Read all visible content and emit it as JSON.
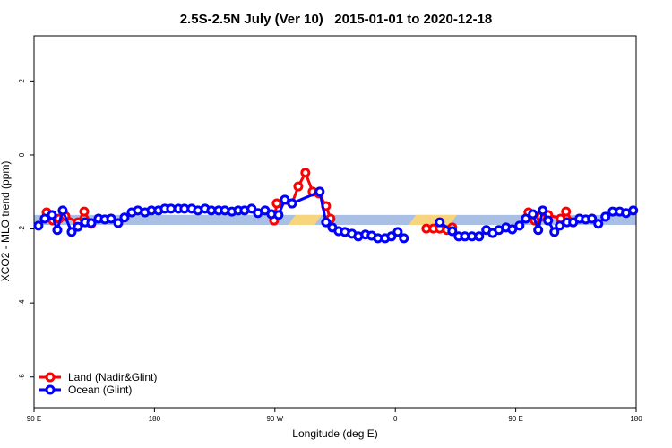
{
  "chart_data": {
    "type": "line",
    "title": "2.5S-2.5N July (Ver 10)   2015-01-01 to 2020-12-18",
    "x_label": "Longitude (deg E)",
    "y_label": "XCO2 - MLO trend (ppm)",
    "xlim": [
      90,
      540
    ],
    "xticks": [
      {
        "value": 90,
        "label": "90 E"
      },
      180,
      {
        "value": 270,
        "label": "90 W"
      },
      {
        "value": 360,
        "label": "0"
      },
      {
        "value": 450,
        "label": "90 E"
      },
      {
        "value": 540,
        "label": "180"
      }
    ],
    "ylim": [
      -6.83,
      3.22
    ],
    "yticks": [
      -6,
      -4,
      -2,
      0,
      2
    ],
    "legend": "bottom-left",
    "band": {
      "range": [
        -1.89,
        -1.62
      ],
      "color": "#a9bfe3",
      "highlight": [
        [
          280,
          305
        ],
        [
          370,
          406
        ]
      ],
      "highlight_color": "#f7d57e"
    },
    "series": [
      {
        "name": "Land (Nadir&Glint)",
        "color": "#ff0000",
        "x": [
          99.4,
          104.1,
          108.7,
          113.4,
          122.8,
          127.5,
          132.8,
          null,
          269.4,
          271.4,
          282.8,
          287.5,
          292.8,
          298.2,
          302.9,
          308.2,
          311.5,
          null,
          383.2,
          388.5,
          393.2,
          398.6,
          402.6,
          null,
          459.5,
          464.2,
          468.9,
          474.2,
          483.6,
          487.6,
          492.9
        ],
        "values": [
          -1.55,
          -1.77,
          -1.72,
          -1.65,
          -1.82,
          -1.53,
          -1.86,
          null,
          -1.77,
          -1.31,
          -1.31,
          -0.85,
          -0.48,
          -0.99,
          -1.04,
          -1.38,
          -1.72,
          null,
          -1.99,
          -1.99,
          -1.99,
          -2.03,
          -1.96,
          null,
          -1.55,
          -1.77,
          -1.67,
          -1.62,
          -1.72,
          -1.53,
          -1.82
        ]
      },
      {
        "name": "Ocean (Glint)",
        "color": "#0000ff",
        "x": [
          93.3,
          98.0,
          103.4,
          107.4,
          111.4,
          118.1,
          122.8,
          128.2,
          132.8,
          138.2,
          142.9,
          147.6,
          152.9,
          157.6,
          163.0,
          167.6,
          173.0,
          177.7,
          183.0,
          187.7,
          192.4,
          197.8,
          202.4,
          207.8,
          212.5,
          217.8,
          222.5,
          227.9,
          232.6,
          237.9,
          242.6,
          247.3,
          252.6,
          257.3,
          262.7,
          267.4,
          272.7,
          277.4,
          282.8,
          303.5,
          308.2,
          312.9,
          317.6,
          322.3,
          327.6,
          332.3,
          337.7,
          342.3,
          347.0,
          352.4,
          357.1,
          361.8,
          366.4,
          null,
          393.2,
          402.6,
          407.3,
          412.0,
          417.3,
          422.7,
          428.0,
          432.7,
          437.4,
          442.7,
          447.4,
          452.8,
          457.5,
          462.8,
          466.8,
          470.2,
          474.2,
          478.9,
          482.9,
          488.3,
          492.9,
          497.6,
          502.3,
          507.0,
          511.7,
          517.0,
          522.4,
          527.7,
          532.4,
          537.8
        ],
        "values": [
          -1.91,
          -1.72,
          -1.62,
          -2.03,
          -1.5,
          -2.08,
          -1.94,
          -1.82,
          -1.84,
          -1.72,
          -1.74,
          -1.72,
          -1.84,
          -1.69,
          -1.55,
          -1.5,
          -1.55,
          -1.5,
          -1.5,
          -1.45,
          -1.45,
          -1.45,
          -1.45,
          -1.45,
          -1.5,
          -1.45,
          -1.5,
          -1.5,
          -1.5,
          -1.53,
          -1.5,
          -1.5,
          -1.45,
          -1.57,
          -1.5,
          -1.6,
          -1.62,
          -1.21,
          -1.31,
          -0.99,
          -1.82,
          -1.96,
          -2.06,
          -2.08,
          -2.13,
          -2.2,
          -2.15,
          -2.18,
          -2.25,
          -2.25,
          -2.2,
          -2.08,
          -2.25,
          null,
          -1.82,
          -2.06,
          -2.2,
          -2.2,
          -2.2,
          -2.2,
          -2.03,
          -2.11,
          -2.03,
          -1.96,
          -2.01,
          -1.91,
          -1.72,
          -1.6,
          -2.03,
          -1.5,
          -1.77,
          -2.08,
          -1.91,
          -1.82,
          -1.82,
          -1.72,
          -1.74,
          -1.72,
          -1.86,
          -1.67,
          -1.53,
          -1.53,
          -1.57,
          -1.5
        ]
      }
    ]
  }
}
